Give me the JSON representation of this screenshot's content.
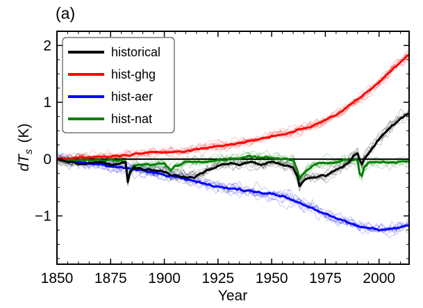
{
  "chart_data": {
    "type": "line",
    "panel_label": "(a)",
    "xlabel": "Year",
    "ylabel": {
      "main": "dT",
      "sub": "s",
      "unit": "(K)"
    },
    "xlim": [
      1850,
      2014
    ],
    "ylim": [
      -1.85,
      2.25
    ],
    "xticks": [
      1850,
      1875,
      1900,
      1925,
      1950,
      1975,
      2000
    ],
    "yticks": [
      -1,
      0,
      1,
      2
    ],
    "ytick_labels": [
      "−1",
      "0",
      "1",
      "2"
    ],
    "reference_line": 0,
    "legend": {
      "position": "upper-left"
    },
    "series": [
      {
        "name": "historical",
        "color": "#000000",
        "noise": 0.12,
        "members": 9,
        "x": [
          1850,
          1855,
          1860,
          1865,
          1870,
          1875,
          1880,
          1882,
          1883,
          1884,
          1886,
          1890,
          1895,
          1900,
          1902,
          1903,
          1905,
          1910,
          1915,
          1920,
          1925,
          1930,
          1935,
          1940,
          1945,
          1950,
          1955,
          1960,
          1962,
          1963,
          1964,
          1966,
          1970,
          1975,
          1980,
          1985,
          1988,
          1990,
          1991,
          1992,
          1993,
          1995,
          2000,
          2005,
          2010,
          2014
        ],
        "values": [
          0.0,
          -0.05,
          -0.08,
          -0.07,
          -0.05,
          -0.1,
          -0.08,
          -0.05,
          -0.42,
          -0.25,
          -0.15,
          -0.17,
          -0.2,
          -0.2,
          -0.25,
          -0.3,
          -0.28,
          -0.32,
          -0.3,
          -0.2,
          -0.12,
          -0.08,
          -0.1,
          -0.05,
          -0.1,
          -0.05,
          -0.1,
          -0.15,
          -0.3,
          -0.48,
          -0.42,
          -0.35,
          -0.32,
          -0.3,
          -0.2,
          -0.1,
          0.05,
          0.1,
          -0.02,
          -0.1,
          0.0,
          0.1,
          0.35,
          0.55,
          0.7,
          0.8
        ]
      },
      {
        "name": "hist-ghg",
        "color": "#ff0000",
        "noise": 0.1,
        "members": 10,
        "x": [
          1850,
          1860,
          1870,
          1880,
          1890,
          1900,
          1910,
          1920,
          1930,
          1940,
          1950,
          1960,
          1970,
          1980,
          1990,
          2000,
          2010,
          2014
        ],
        "values": [
          0.0,
          0.02,
          0.04,
          0.06,
          0.1,
          0.12,
          0.15,
          0.2,
          0.25,
          0.32,
          0.4,
          0.48,
          0.6,
          0.78,
          1.05,
          1.35,
          1.72,
          1.85
        ]
      },
      {
        "name": "hist-aer",
        "color": "#0000ff",
        "noise": 0.12,
        "members": 10,
        "x": [
          1850,
          1860,
          1870,
          1880,
          1890,
          1900,
          1910,
          1920,
          1930,
          1940,
          1950,
          1955,
          1960,
          1970,
          1980,
          1990,
          2000,
          2010,
          2014
        ],
        "values": [
          0.0,
          -0.05,
          -0.1,
          -0.15,
          -0.2,
          -0.27,
          -0.35,
          -0.45,
          -0.52,
          -0.55,
          -0.62,
          -0.65,
          -0.72,
          -0.88,
          -1.05,
          -1.18,
          -1.25,
          -1.2,
          -1.15
        ]
      },
      {
        "name": "hist-nat",
        "color": "#008000",
        "noise": 0.1,
        "members": 10,
        "x": [
          1850,
          1860,
          1870,
          1880,
          1882,
          1883,
          1884,
          1886,
          1890,
          1900,
          1902,
          1903,
          1905,
          1910,
          1920,
          1930,
          1940,
          1950,
          1960,
          1962,
          1963,
          1964,
          1966,
          1970,
          1980,
          1985,
          1990,
          1991,
          1992,
          1993,
          1995,
          2000,
          2010,
          2014
        ],
        "values": [
          0.0,
          -0.02,
          -0.02,
          -0.03,
          -0.05,
          -0.4,
          -0.22,
          -0.12,
          -0.1,
          -0.08,
          -0.15,
          -0.2,
          -0.12,
          -0.05,
          -0.03,
          0.0,
          0.05,
          0.02,
          -0.02,
          -0.2,
          -0.35,
          -0.3,
          -0.2,
          -0.08,
          -0.05,
          0.0,
          -0.02,
          -0.25,
          -0.3,
          -0.15,
          -0.05,
          -0.05,
          -0.05,
          -0.05
        ]
      }
    ]
  }
}
